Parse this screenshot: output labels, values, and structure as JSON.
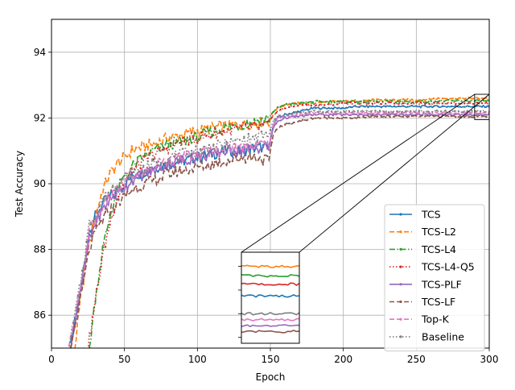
{
  "chart_data": {
    "type": "line",
    "xlabel": "Epoch",
    "ylabel": "Test Accuracy",
    "xlim": [
      0,
      300
    ],
    "ylim": [
      85,
      95
    ],
    "xticks": [
      0,
      50,
      100,
      150,
      200,
      250,
      300
    ],
    "yticks": [
      86,
      88,
      90,
      92,
      94
    ],
    "grid": true,
    "legend_position": "lower right",
    "inset": {
      "x_range": [
        290,
        300
      ],
      "y_range": [
        91.95,
        92.72
      ],
      "placement": "lower middle"
    },
    "series": [
      {
        "name": "TCS",
        "color": "#1f77b4",
        "dash": "solid",
        "marker": "dot",
        "x": [
          13,
          20,
          26,
          30,
          35,
          40,
          45,
          50,
          55,
          60,
          70,
          80,
          90,
          100,
          110,
          120,
          130,
          140,
          149,
          152,
          155,
          160,
          170,
          180,
          190,
          200,
          210,
          220,
          230,
          240,
          250,
          260,
          270,
          280,
          290,
          300
        ],
        "y": [
          85.0,
          86.8,
          88.6,
          89.0,
          89.4,
          89.6,
          89.8,
          90.0,
          90.2,
          90.3,
          90.5,
          90.6,
          90.7,
          90.8,
          90.9,
          91.0,
          91.0,
          91.1,
          91.1,
          91.8,
          92.0,
          92.1,
          92.2,
          92.3,
          92.3,
          92.3,
          92.35,
          92.35,
          92.35,
          92.35,
          92.35,
          92.35,
          92.35,
          92.35,
          92.35,
          92.35
        ]
      },
      {
        "name": "TCS-L2",
        "color": "#ff7f0e",
        "dash": "dashed",
        "marker": "dot",
        "x": [
          16,
          20,
          25,
          30,
          35,
          40,
          45,
          50,
          55,
          60,
          70,
          80,
          90,
          100,
          110,
          120,
          130,
          140,
          149,
          152,
          155,
          160,
          170,
          180,
          190,
          200,
          210,
          220,
          230,
          240,
          250,
          260,
          270,
          280,
          290,
          300
        ],
        "y": [
          85.0,
          86.5,
          88.0,
          89.0,
          89.8,
          90.3,
          90.6,
          90.8,
          91.0,
          91.1,
          91.2,
          91.4,
          91.5,
          91.6,
          91.7,
          91.75,
          91.8,
          91.85,
          91.9,
          92.2,
          92.3,
          92.4,
          92.45,
          92.45,
          92.5,
          92.5,
          92.52,
          92.55,
          92.55,
          92.55,
          92.55,
          92.58,
          92.6,
          92.6,
          92.6,
          92.6
        ]
      },
      {
        "name": "TCS-L4",
        "color": "#2ca02c",
        "dash": "dashdot",
        "marker": "dot",
        "x": [
          26,
          30,
          35,
          40,
          45,
          50,
          55,
          60,
          70,
          80,
          90,
          100,
          110,
          120,
          130,
          140,
          149,
          152,
          155,
          160,
          170,
          180,
          190,
          200,
          210,
          220,
          230,
          240,
          250,
          260,
          270,
          280,
          290,
          300
        ],
        "y": [
          85.0,
          86.5,
          88.0,
          89.0,
          89.8,
          90.2,
          90.5,
          90.7,
          91.0,
          91.2,
          91.3,
          91.4,
          91.6,
          91.7,
          91.8,
          91.9,
          92.0,
          92.2,
          92.3,
          92.4,
          92.45,
          92.5,
          92.5,
          92.5,
          92.5,
          92.5,
          92.5,
          92.5,
          92.5,
          92.5,
          92.52,
          92.52,
          92.52,
          92.52
        ]
      },
      {
        "name": "TCS-L4-Q5",
        "color": "#d62728",
        "dash": "dotted",
        "marker": "dot",
        "x": [
          25,
          30,
          35,
          40,
          45,
          50,
          55,
          60,
          70,
          80,
          90,
          100,
          110,
          120,
          130,
          140,
          149,
          152,
          155,
          160,
          170,
          180,
          190,
          200,
          210,
          220,
          230,
          240,
          250,
          260,
          270,
          280,
          290,
          300
        ],
        "y": [
          85.0,
          86.4,
          87.8,
          88.8,
          89.6,
          90.0,
          90.4,
          90.6,
          90.9,
          91.1,
          91.3,
          91.4,
          91.5,
          91.6,
          91.7,
          91.7,
          91.8,
          92.1,
          92.2,
          92.3,
          92.4,
          92.4,
          92.4,
          92.45,
          92.45,
          92.45,
          92.45,
          92.45,
          92.45,
          92.45,
          92.45,
          92.45,
          92.45,
          92.45
        ]
      },
      {
        "name": "TCS-PLF",
        "color": "#9467bd",
        "dash": "solid",
        "marker": "dot",
        "x": [
          13,
          20,
          26,
          30,
          35,
          40,
          45,
          50,
          55,
          60,
          70,
          80,
          90,
          100,
          110,
          120,
          130,
          140,
          149,
          152,
          155,
          160,
          170,
          180,
          190,
          200,
          210,
          220,
          230,
          240,
          250,
          260,
          270,
          280,
          290,
          300
        ],
        "y": [
          85.0,
          86.7,
          88.3,
          88.8,
          89.2,
          89.5,
          89.7,
          89.9,
          90.1,
          90.2,
          90.4,
          90.6,
          90.7,
          90.8,
          90.9,
          91.0,
          91.0,
          91.1,
          91.1,
          91.7,
          91.9,
          92.0,
          92.05,
          92.1,
          92.1,
          92.1,
          92.1,
          92.1,
          92.1,
          92.1,
          92.1,
          92.1,
          92.1,
          92.1,
          92.1,
          92.1
        ]
      },
      {
        "name": "TCS-LF",
        "color": "#8c564b",
        "dash": "dashed",
        "marker": "dot",
        "x": [
          13,
          20,
          26,
          30,
          35,
          40,
          45,
          50,
          55,
          60,
          70,
          80,
          90,
          100,
          110,
          120,
          130,
          140,
          149,
          152,
          155,
          160,
          170,
          180,
          190,
          200,
          210,
          220,
          230,
          240,
          250,
          260,
          270,
          280,
          290,
          300
        ],
        "y": [
          85.0,
          86.5,
          88.0,
          88.5,
          88.9,
          89.2,
          89.4,
          89.6,
          89.8,
          89.9,
          90.1,
          90.3,
          90.4,
          90.5,
          90.6,
          90.7,
          90.8,
          90.8,
          90.7,
          91.5,
          91.7,
          91.8,
          91.9,
          92.0,
          92.0,
          92.0,
          92.0,
          92.05,
          92.05,
          92.05,
          92.05,
          92.05,
          92.05,
          92.05,
          92.05,
          92.05
        ]
      },
      {
        "name": "Top-K",
        "color": "#e377c2",
        "dash": "dashed",
        "marker": "dot",
        "x": [
          12,
          20,
          26,
          30,
          35,
          40,
          45,
          50,
          55,
          60,
          70,
          80,
          90,
          100,
          110,
          120,
          130,
          140,
          149,
          152,
          155,
          160,
          170,
          180,
          190,
          200,
          210,
          220,
          230,
          240,
          250,
          260,
          270,
          280,
          290,
          300
        ],
        "y": [
          85.0,
          86.8,
          88.6,
          88.9,
          89.3,
          89.6,
          89.8,
          90.0,
          90.2,
          90.3,
          90.5,
          90.7,
          90.8,
          90.9,
          91.0,
          91.1,
          91.1,
          91.2,
          91.2,
          91.8,
          92.0,
          92.05,
          92.1,
          92.15,
          92.15,
          92.15,
          92.15,
          92.15,
          92.15,
          92.15,
          92.15,
          92.15,
          92.15,
          92.15,
          92.15,
          92.15
        ]
      },
      {
        "name": "Baseline",
        "color": "#7f7f7f",
        "dash": "dotted",
        "marker": "dot",
        "x": [
          12,
          20,
          26,
          30,
          35,
          40,
          45,
          50,
          55,
          60,
          70,
          80,
          90,
          100,
          110,
          120,
          130,
          140,
          149,
          152,
          155,
          160,
          170,
          180,
          190,
          200,
          210,
          220,
          230,
          240,
          250,
          260,
          270,
          280,
          290,
          300
        ],
        "y": [
          85.0,
          87.0,
          88.8,
          89.1,
          89.5,
          89.8,
          90.0,
          90.2,
          90.3,
          90.4,
          90.6,
          90.8,
          90.9,
          91.0,
          91.1,
          91.2,
          91.3,
          91.4,
          91.5,
          91.9,
          92.05,
          92.1,
          92.15,
          92.2,
          92.2,
          92.2,
          92.2,
          92.2,
          92.2,
          92.2,
          92.2,
          92.2,
          92.2,
          92.2,
          92.2,
          92.2
        ]
      }
    ]
  }
}
